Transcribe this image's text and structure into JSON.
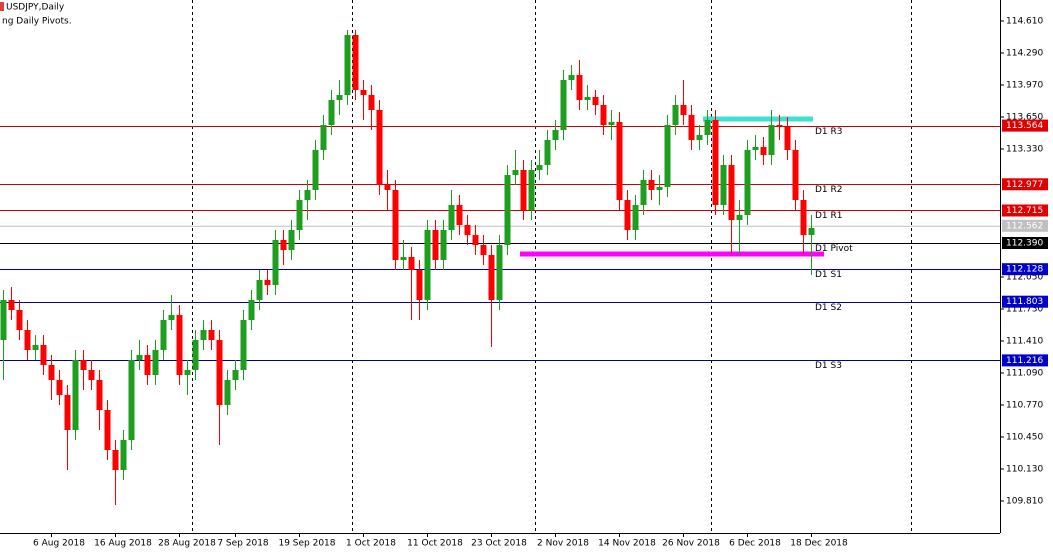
{
  "chart_data": {
    "type": "candlestick",
    "title": "USDJPY,Daily",
    "subtitle": "ng Daily Pivots.",
    "categories": [
      null,
      null,
      null,
      null,
      null,
      null,
      "6 Aug 2018",
      null,
      null,
      null,
      null,
      null,
      null,
      null,
      "16 Aug 2018",
      null,
      null,
      null,
      null,
      null,
      null,
      null,
      "28 Aug 2018",
      null,
      null,
      null,
      null,
      null,
      null,
      "7 Sep 2018",
      null,
      null,
      null,
      null,
      null,
      null,
      null,
      "19 Sep 2018",
      null,
      null,
      null,
      null,
      null,
      null,
      null,
      "1 Oct 2018",
      null,
      null,
      null,
      null,
      null,
      null,
      null,
      "11 Oct 2018",
      null,
      null,
      null,
      null,
      null,
      null,
      null,
      "23 Oct 2018",
      null,
      null,
      null,
      null,
      null,
      null,
      null,
      "2 Nov 2018",
      null,
      null,
      null,
      null,
      null,
      null,
      null,
      "14 Nov 2018",
      null,
      null,
      null,
      null,
      null,
      null,
      null,
      "26 Nov 2018",
      null,
      null,
      null,
      null,
      null,
      null,
      null,
      "6 Dec 2018",
      null,
      null,
      null,
      null,
      null,
      null,
      null,
      "18 Dec 2018"
    ],
    "series": {
      "open": [
        111.42,
        111.82,
        111.72,
        111.52,
        111.32,
        111.37,
        111.17,
        111.02,
        110.87,
        110.52,
        111.22,
        111.12,
        111.02,
        110.72,
        110.32,
        110.12,
        110.42,
        111.22,
        111.27,
        111.07,
        111.32,
        111.62,
        111.67,
        111.07,
        111.12,
        111.42,
        111.52,
        111.42,
        110.77,
        111.02,
        111.12,
        111.62,
        111.82,
        112.02,
        111.97,
        112.42,
        112.32,
        112.52,
        112.82,
        112.92,
        113.32,
        113.57,
        113.82,
        113.87,
        114.47,
        113.92,
        113.87,
        113.72,
        112.97,
        112.92,
        112.22,
        112.25,
        112.12,
        111.82,
        112.52,
        112.22,
        112.52,
        112.77,
        112.57,
        112.47,
        112.37,
        112.27,
        111.82,
        112.37,
        113.07,
        113.12,
        112.72,
        113.12,
        113.17,
        113.42,
        113.52,
        114.02,
        114.07,
        113.82,
        113.85,
        113.77,
        113.57,
        113.6,
        112.82,
        112.52,
        112.77,
        113.02,
        112.92,
        112.95,
        113.57,
        113.77,
        113.67,
        113.42,
        113.47,
        113.62,
        112.77,
        113.17,
        112.62,
        112.67,
        113.32,
        113.35,
        113.27,
        113.57,
        113.55,
        113.32,
        112.82,
        112.47
      ],
      "high": [
        111.92,
        111.95,
        111.82,
        111.62,
        111.47,
        111.47,
        111.27,
        111.12,
        110.97,
        111.32,
        111.32,
        111.22,
        111.12,
        110.82,
        110.42,
        110.52,
        111.32,
        111.42,
        111.37,
        111.42,
        111.72,
        111.87,
        111.77,
        111.22,
        111.52,
        111.62,
        111.62,
        111.52,
        111.12,
        111.22,
        111.72,
        111.92,
        112.12,
        112.12,
        112.52,
        112.52,
        112.62,
        112.92,
        113.02,
        113.42,
        113.67,
        113.92,
        114.02,
        114.52,
        114.52,
        114.02,
        113.97,
        113.82,
        113.12,
        113.02,
        112.42,
        112.35,
        112.22,
        112.62,
        112.62,
        112.62,
        112.92,
        112.87,
        112.67,
        112.57,
        112.47,
        112.37,
        112.47,
        113.17,
        113.32,
        113.22,
        113.22,
        113.32,
        113.52,
        113.62,
        114.12,
        114.17,
        114.22,
        113.97,
        113.92,
        113.87,
        113.72,
        113.7,
        112.92,
        112.87,
        113.12,
        113.12,
        113.07,
        113.67,
        113.87,
        114.02,
        113.77,
        113.57,
        113.72,
        113.72,
        113.27,
        113.27,
        112.82,
        113.42,
        113.47,
        113.45,
        113.72,
        113.67,
        113.65,
        113.42,
        112.92,
        112.67
      ],
      "low": [
        111.02,
        111.62,
        111.42,
        111.22,
        111.22,
        111.07,
        110.82,
        110.77,
        110.12,
        110.42,
        110.92,
        110.92,
        110.52,
        110.22,
        109.77,
        110.02,
        110.32,
        111.12,
        110.97,
        110.97,
        111.22,
        111.52,
        110.97,
        110.87,
        111.02,
        111.32,
        111.32,
        110.37,
        110.67,
        110.92,
        111.02,
        111.52,
        111.72,
        111.87,
        111.87,
        112.17,
        112.22,
        112.42,
        112.62,
        112.82,
        113.22,
        113.47,
        113.67,
        113.77,
        113.82,
        113.62,
        113.52,
        112.87,
        112.72,
        112.12,
        112.12,
        111.62,
        111.62,
        111.72,
        112.12,
        112.12,
        112.42,
        112.47,
        112.37,
        112.27,
        112.17,
        111.35,
        111.72,
        112.27,
        112.97,
        112.62,
        112.62,
        113.02,
        113.07,
        113.32,
        113.42,
        113.92,
        113.72,
        113.72,
        113.67,
        113.47,
        113.42,
        112.72,
        112.42,
        112.42,
        112.67,
        112.82,
        112.77,
        112.85,
        113.47,
        113.57,
        113.32,
        113.32,
        113.37,
        112.67,
        112.67,
        112.27,
        112.27,
        112.57,
        113.22,
        113.17,
        113.17,
        113.42,
        113.22,
        112.72,
        112.27,
        112.07
      ],
      "close": [
        111.82,
        111.72,
        111.52,
        111.32,
        111.37,
        111.17,
        111.02,
        110.87,
        110.52,
        111.22,
        111.12,
        111.02,
        110.72,
        110.32,
        110.12,
        110.42,
        111.22,
        111.27,
        111.07,
        111.32,
        111.62,
        111.67,
        111.07,
        111.12,
        111.42,
        111.52,
        111.42,
        110.77,
        111.02,
        111.12,
        111.62,
        111.82,
        112.02,
        111.97,
        112.42,
        112.32,
        112.52,
        112.82,
        112.92,
        113.32,
        113.57,
        113.82,
        113.87,
        114.47,
        113.92,
        113.87,
        113.72,
        112.97,
        112.92,
        112.22,
        112.25,
        112.12,
        111.82,
        112.52,
        112.22,
        112.52,
        112.77,
        112.57,
        112.47,
        112.37,
        112.27,
        111.82,
        112.37,
        113.07,
        113.12,
        112.72,
        113.12,
        113.17,
        113.42,
        113.52,
        114.02,
        114.07,
        113.82,
        113.85,
        113.77,
        113.57,
        113.6,
        112.82,
        112.52,
        112.77,
        113.02,
        112.92,
        112.95,
        113.57,
        113.77,
        113.67,
        113.42,
        113.47,
        113.62,
        112.77,
        113.17,
        112.62,
        112.67,
        113.32,
        113.35,
        113.27,
        113.57,
        113.55,
        113.32,
        112.82,
        112.47,
        112.54
      ]
    },
    "up_color": "#1e9e1e",
    "down_color": "#ff0000",
    "ylim": [
      109.49,
      114.82
    ],
    "yticks": [
      {
        "value": 114.61,
        "label": "114.610"
      },
      {
        "value": 114.29,
        "label": "114.290"
      },
      {
        "value": 113.97,
        "label": "113.970"
      },
      {
        "value": 113.65,
        "label": "113.650"
      },
      {
        "value": 113.33,
        "label": "113.330"
      },
      {
        "value": 112.05,
        "label": "112.050"
      },
      {
        "value": 111.73,
        "label": "111.730"
      },
      {
        "value": 111.41,
        "label": "111.410"
      },
      {
        "value": 111.09,
        "label": "111.090"
      },
      {
        "value": 110.77,
        "label": "110.770"
      },
      {
        "value": 110.45,
        "label": "110.450"
      },
      {
        "value": 110.13,
        "label": "110.130"
      },
      {
        "value": 109.81,
        "label": "109.810"
      }
    ],
    "levels": [
      {
        "name": "D1 R3",
        "value": 113.564,
        "label": "113.564",
        "color": "#d00000",
        "box_color": "#e00000"
      },
      {
        "name": "D1 R2",
        "value": 112.977,
        "label": "112.977",
        "color": "#d00000",
        "box_color": "#e00000"
      },
      {
        "name": "D1 R1",
        "value": 112.715,
        "label": "112.715",
        "color": "#d00000",
        "box_color": "#e00000"
      },
      {
        "name": "D1 Pivot",
        "value": 112.39,
        "label": "112.390",
        "color": "#000000",
        "box_color": "#000000"
      },
      {
        "name": "D1 S1",
        "value": 112.128,
        "label": "112.128",
        "color": "#00009c",
        "box_color": "#0000c8"
      },
      {
        "name": "D1 S2",
        "value": 111.803,
        "label": "111.803",
        "color": "#00009c",
        "box_color": "#0000c8"
      },
      {
        "name": "D1 S3",
        "value": 111.216,
        "label": "111.216",
        "color": "#00009c",
        "box_color": "#0000c8"
      }
    ],
    "current_price": {
      "value": 112.562,
      "label": "112.562",
      "color": "#c0c0c0"
    },
    "drawn_lines": [
      {
        "value": 113.63,
        "color": "#40e0d0"
      },
      {
        "value": 112.28,
        "color": "#ff00ff"
      }
    ]
  }
}
